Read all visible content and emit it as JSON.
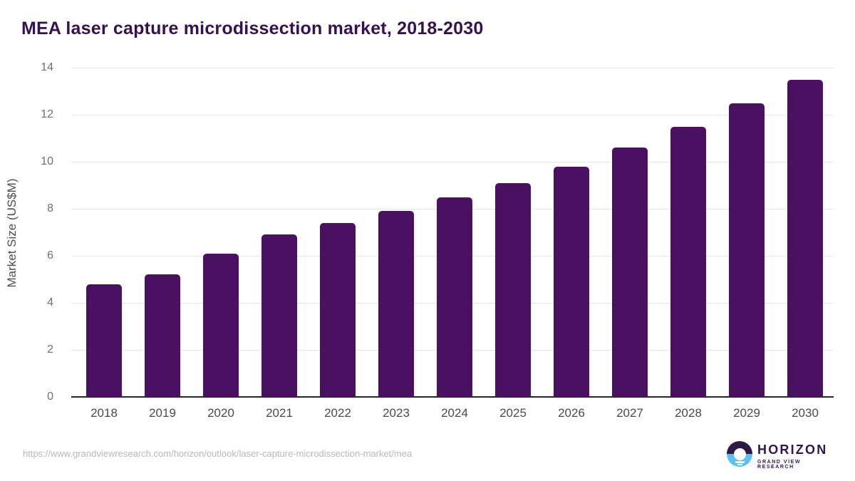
{
  "title": "MEA laser capture microdissection market, 2018-2030",
  "chart_data": {
    "type": "bar",
    "title": "MEA laser capture microdissection market, 2018-2030",
    "categories": [
      "2018",
      "2019",
      "2020",
      "2021",
      "2022",
      "2023",
      "2024",
      "2025",
      "2026",
      "2027",
      "2028",
      "2029",
      "2030"
    ],
    "values": [
      4.8,
      5.2,
      6.1,
      6.9,
      7.4,
      7.9,
      8.5,
      9.1,
      9.8,
      10.6,
      11.5,
      12.5,
      13.5
    ],
    "xlabel": "",
    "ylabel": "Market Size (US$M)",
    "ylim": [
      0,
      14
    ],
    "ytick_step": 2,
    "grid": true,
    "legend": "none",
    "bar_color": "#4a1062"
  },
  "footer": {
    "source_url": "https://www.grandviewresearch.com/horizon/outlook/laser-capture-microdissection-market/mea",
    "logo": {
      "name": "HORIZON",
      "subtitle": "GRAND VIEW RESEARCH"
    }
  },
  "colors": {
    "title_text": "#371052",
    "bar": "#4a1062",
    "gridline": "#e7e7e7",
    "axis_line": "#26262b",
    "x_tick_text": "#4a4a4a",
    "y_tick_text": "#6e6e6e",
    "url_text": "#b8b8b8",
    "logo_purple": "#2b1a44",
    "logo_blue": "#58c3f3"
  }
}
